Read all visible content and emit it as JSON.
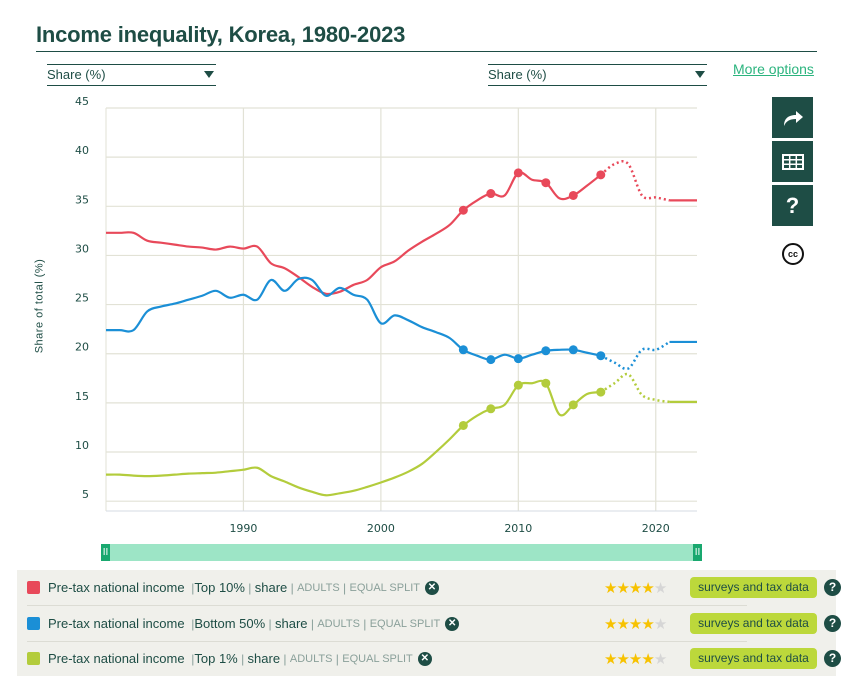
{
  "header": {
    "title": "Income inequality, Korea, 1980-2023",
    "left_dropdown": "Share (%)",
    "right_dropdown": "Share (%)",
    "more_options": "More options"
  },
  "sidebar": {
    "buttons": [
      {
        "name": "share-icon",
        "label": "Share"
      },
      {
        "name": "table-icon",
        "label": "Table"
      },
      {
        "name": "help-icon",
        "label": "?"
      }
    ],
    "license": "cc"
  },
  "slider": {
    "left_handle": "II",
    "right_handle": "II",
    "range_start": 1980,
    "range_end": 2023
  },
  "legend": [
    {
      "color": "#e8495a",
      "indicator": "Pre-tax national income",
      "group": "Top 10%",
      "measure": "share",
      "population": "ADULTS",
      "split": "EQUAL SPLIT",
      "stars": 4,
      "stars_max": 5,
      "source": "surveys and tax data"
    },
    {
      "color": "#1b8fd6",
      "indicator": "Pre-tax national income",
      "group": "Bottom 50%",
      "measure": "share",
      "population": "ADULTS",
      "split": "EQUAL SPLIT",
      "stars": 4,
      "stars_max": 5,
      "source": "surveys and tax data"
    },
    {
      "color": "#b3cc3c",
      "indicator": "Pre-tax national income",
      "group": "Top 1%",
      "measure": "share",
      "population": "ADULTS",
      "split": "EQUAL SPLIT",
      "stars": 4,
      "stars_max": 5,
      "source": "surveys and tax data"
    }
  ],
  "chart_data": {
    "type": "line",
    "title": "Income inequality, Korea, 1980-2023",
    "xlabel": "",
    "ylabel": "Share of total (%)",
    "xlim": [
      1980,
      2023
    ],
    "ylim": [
      4,
      45
    ],
    "x_ticks": [
      1990,
      2000,
      2010,
      2020
    ],
    "y_ticks": [
      5,
      10,
      15,
      20,
      25,
      30,
      35,
      40,
      45
    ],
    "grid": true,
    "x": [
      1980,
      1981,
      1982,
      1983,
      1984,
      1985,
      1986,
      1987,
      1988,
      1989,
      1990,
      1991,
      1992,
      1993,
      1994,
      1995,
      1996,
      1997,
      1998,
      1999,
      2000,
      2001,
      2002,
      2003,
      2004,
      2005,
      2006,
      2007,
      2008,
      2009,
      2010,
      2011,
      2012,
      2013,
      2014,
      2015,
      2016,
      2017,
      2018,
      2019,
      2020,
      2021,
      2022,
      2023
    ],
    "series": [
      {
        "name": "Top 10% share",
        "color": "#e8495a",
        "values": [
          32.3,
          32.3,
          32.3,
          31.5,
          31.3,
          31.1,
          30.9,
          30.8,
          30.6,
          30.9,
          30.7,
          30.9,
          29.2,
          28.7,
          27.8,
          26.8,
          26.1,
          26.3,
          27.0,
          27.5,
          28.8,
          29.4,
          30.5,
          31.4,
          32.2,
          33.1,
          34.6,
          35.6,
          36.3,
          36.1,
          38.4,
          37.7,
          37.4,
          35.8,
          36.1,
          37.1,
          38.2,
          39.3,
          39.3,
          36.1,
          35.9,
          35.6,
          35.6,
          35.6
        ],
        "markers": [
          2006,
          2008,
          2010,
          2012,
          2014,
          2016
        ],
        "dotted_range": [
          2016,
          2021
        ]
      },
      {
        "name": "Bottom 50% share",
        "color": "#1b8fd6",
        "values": [
          22.4,
          22.4,
          22.4,
          24.3,
          24.8,
          25.1,
          25.5,
          25.9,
          26.4,
          25.7,
          26.0,
          25.5,
          27.5,
          26.4,
          27.6,
          27.5,
          25.9,
          26.7,
          26.0,
          25.5,
          23.1,
          23.9,
          23.4,
          22.7,
          22.2,
          21.6,
          20.4,
          19.8,
          19.4,
          19.9,
          19.5,
          19.9,
          20.3,
          20.4,
          20.4,
          20.1,
          19.8,
          19.1,
          18.5,
          20.4,
          20.4,
          21.2,
          21.2,
          21.2
        ],
        "markers": [
          2006,
          2008,
          2010,
          2012,
          2014,
          2016
        ],
        "dotted_range": [
          2016,
          2021
        ]
      },
      {
        "name": "Top 1% share",
        "color": "#b3cc3c",
        "values": [
          7.7,
          7.7,
          7.6,
          7.55,
          7.6,
          7.7,
          7.8,
          7.85,
          7.9,
          8.05,
          8.2,
          8.4,
          7.55,
          7.0,
          6.4,
          5.95,
          5.6,
          5.8,
          6.05,
          6.45,
          6.9,
          7.4,
          8.0,
          8.8,
          10.0,
          11.3,
          12.7,
          13.7,
          14.4,
          14.8,
          16.8,
          17.0,
          17.0,
          13.8,
          14.8,
          15.9,
          16.1,
          17.0,
          17.9,
          15.8,
          15.3,
          15.1,
          15.1,
          15.1
        ],
        "markers": [
          2006,
          2008,
          2010,
          2012,
          2014,
          2016
        ],
        "dotted_range": [
          2016,
          2021
        ]
      }
    ]
  }
}
